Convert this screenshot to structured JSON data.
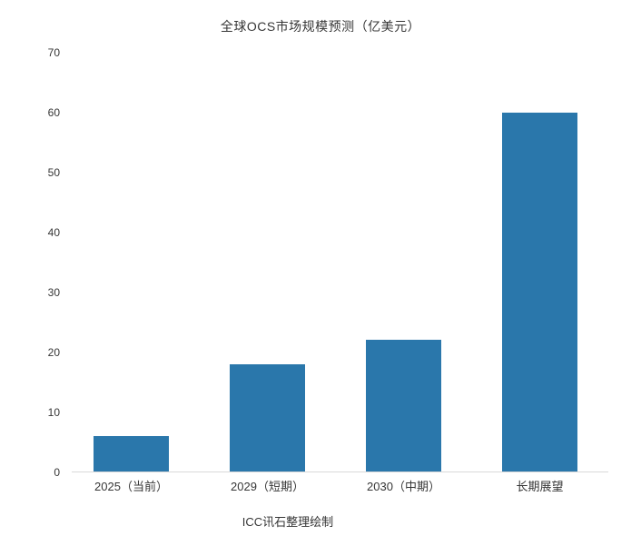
{
  "page": {
    "background": "#ffffff"
  },
  "chart_data": {
    "type": "bar",
    "title": "全球OCS市场规模预测（亿美元）",
    "categories": [
      "2025（当前）",
      "2029（短期）",
      "2030（中期）",
      "长期展望"
    ],
    "values": [
      6,
      18,
      22,
      60
    ],
    "ylim": [
      0,
      70
    ],
    "yticks": [
      0,
      10,
      20,
      30,
      40,
      50,
      60,
      70
    ],
    "xlabel": "",
    "ylabel": "",
    "grid": "off",
    "legend": "none",
    "bar_color": "#2a77ab",
    "axis_line_color": "#d9d9d9",
    "text_color": "#363636",
    "source_caption": "ICC讯石整理绘制"
  }
}
